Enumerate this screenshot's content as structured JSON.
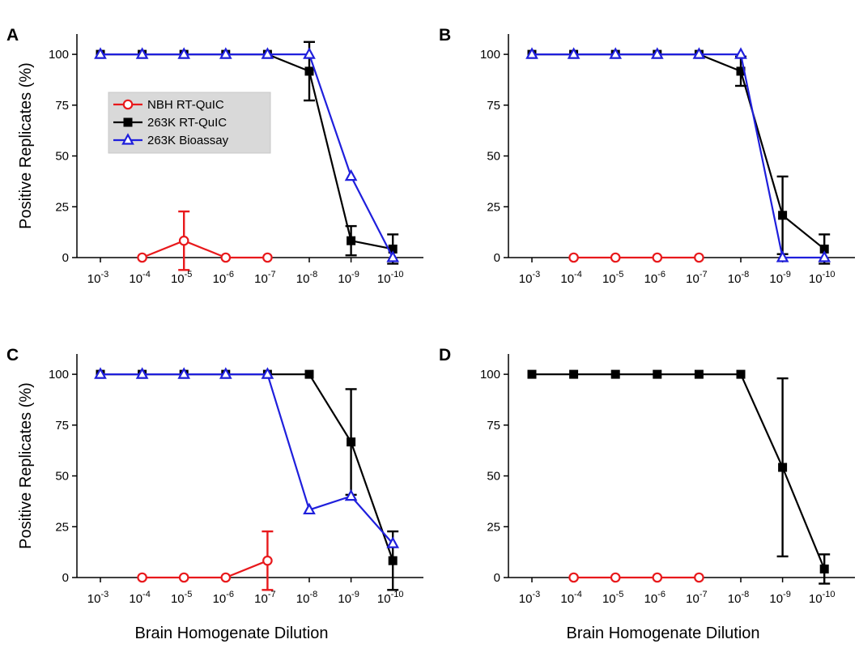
{
  "figure": {
    "ylabel": "Positive Replicates (%)",
    "xlabel": "Brain Homogenate Dilution"
  },
  "legend": {
    "entries": [
      {
        "name": "NBH RT-QuIC",
        "color": "#e8191c",
        "marker": "circle-open"
      },
      {
        "name": "263K RT-QuIC",
        "color": "#000000",
        "marker": "square-filled"
      },
      {
        "name": "263K Bioassay",
        "color": "#1f1fdc",
        "marker": "triangle-open"
      }
    ],
    "background": "#d9d9d9"
  },
  "chart_data": [
    {
      "panel": "A",
      "type": "line",
      "x_ticks": [
        "-3",
        "-4",
        "-5",
        "-6",
        "-7",
        "-8",
        "-9",
        "-10"
      ],
      "ylim": [
        0,
        110
      ],
      "y_ticks": [
        0,
        25,
        50,
        75,
        100
      ],
      "legend_placement": "top-left",
      "series": [
        {
          "name": "NBH RT-QuIC",
          "color": "#e8191c",
          "marker": "circle-open",
          "x": [
            "-4",
            "-5",
            "-6",
            "-7"
          ],
          "y": [
            0,
            8.3,
            0,
            0
          ],
          "err": [
            0,
            14.4,
            0,
            0
          ]
        },
        {
          "name": "263K RT-QuIC",
          "color": "#000000",
          "marker": "square-filled",
          "x": [
            "-3",
            "-4",
            "-5",
            "-6",
            "-7",
            "-8",
            "-9",
            "-10"
          ],
          "y": [
            100,
            100,
            100,
            100,
            100,
            91.7,
            8.3,
            4.2
          ],
          "err": [
            0,
            0,
            0,
            0,
            0,
            14.4,
            7.2,
            7.2
          ]
        },
        {
          "name": "263K Bioassay",
          "color": "#1f1fdc",
          "marker": "triangle-open",
          "x": [
            "-3",
            "-4",
            "-5",
            "-6",
            "-7",
            "-8",
            "-9",
            "-10"
          ],
          "y": [
            100,
            100,
            100,
            100,
            100,
            100,
            40,
            0
          ],
          "err": [
            0,
            0,
            0,
            0,
            0,
            0,
            0,
            0
          ]
        }
      ]
    },
    {
      "panel": "B",
      "type": "line",
      "x_ticks": [
        "-3",
        "-4",
        "-5",
        "-6",
        "-7",
        "-8",
        "-9",
        "-10"
      ],
      "ylim": [
        0,
        110
      ],
      "y_ticks": [
        0,
        25,
        50,
        75,
        100
      ],
      "series": [
        {
          "name": "NBH RT-QuIC",
          "color": "#e8191c",
          "marker": "circle-open",
          "x": [
            "-4",
            "-5",
            "-6",
            "-7"
          ],
          "y": [
            0,
            0,
            0,
            0
          ],
          "err": [
            0,
            0,
            0,
            0
          ]
        },
        {
          "name": "263K RT-QuIC",
          "color": "#000000",
          "marker": "square-filled",
          "x": [
            "-3",
            "-4",
            "-5",
            "-6",
            "-7",
            "-8",
            "-9",
            "-10"
          ],
          "y": [
            100,
            100,
            100,
            100,
            100,
            91.7,
            20.8,
            4.2
          ],
          "err": [
            0,
            0,
            0,
            0,
            0,
            7.2,
            19.1,
            7.2
          ]
        },
        {
          "name": "263K Bioassay",
          "color": "#1f1fdc",
          "marker": "triangle-open",
          "x": [
            "-3",
            "-4",
            "-5",
            "-6",
            "-7",
            "-8",
            "-9",
            "-10"
          ],
          "y": [
            100,
            100,
            100,
            100,
            100,
            100,
            0,
            0
          ],
          "err": [
            0,
            0,
            0,
            0,
            0,
            0,
            0,
            0
          ]
        }
      ]
    },
    {
      "panel": "C",
      "type": "line",
      "x_ticks": [
        "-3",
        "-4",
        "-5",
        "-6",
        "-7",
        "-8",
        "-9",
        "-10"
      ],
      "ylim": [
        0,
        110
      ],
      "y_ticks": [
        0,
        25,
        50,
        75,
        100
      ],
      "series": [
        {
          "name": "NBH RT-QuIC",
          "color": "#e8191c",
          "marker": "circle-open",
          "x": [
            "-4",
            "-5",
            "-6",
            "-7"
          ],
          "y": [
            0,
            0,
            0,
            8.3
          ],
          "err": [
            0,
            0,
            0,
            14.4
          ]
        },
        {
          "name": "263K RT-QuIC",
          "color": "#000000",
          "marker": "square-filled",
          "x": [
            "-3",
            "-4",
            "-5",
            "-6",
            "-7",
            "-8",
            "-9",
            "-10"
          ],
          "y": [
            100,
            100,
            100,
            100,
            100,
            100,
            66.7,
            8.3
          ],
          "err": [
            0,
            0,
            0,
            0,
            0,
            0,
            26,
            14.4
          ]
        },
        {
          "name": "263K Bioassay",
          "color": "#1f1fdc",
          "marker": "triangle-open",
          "x": [
            "-3",
            "-4",
            "-5",
            "-6",
            "-7",
            "-8",
            "-9",
            "-10"
          ],
          "y": [
            100,
            100,
            100,
            100,
            100,
            33.3,
            40,
            16.7
          ],
          "err": [
            0,
            0,
            0,
            0,
            0,
            0,
            0,
            0
          ]
        }
      ]
    },
    {
      "panel": "D",
      "type": "line",
      "x_ticks": [
        "-3",
        "-4",
        "-5",
        "-6",
        "-7",
        "-8",
        "-9",
        "-10"
      ],
      "ylim": [
        0,
        110
      ],
      "y_ticks": [
        0,
        25,
        50,
        75,
        100
      ],
      "series": [
        {
          "name": "NBH RT-QuIC",
          "color": "#e8191c",
          "marker": "circle-open",
          "x": [
            "-4",
            "-5",
            "-6",
            "-7"
          ],
          "y": [
            0,
            0,
            0,
            0
          ],
          "err": [
            0,
            0,
            0,
            0
          ]
        },
        {
          "name": "263K RT-QuIC",
          "color": "#000000",
          "marker": "square-filled",
          "x": [
            "-3",
            "-4",
            "-5",
            "-6",
            "-7",
            "-8",
            "-9",
            "-10"
          ],
          "y": [
            100,
            100,
            100,
            100,
            100,
            100,
            54.2,
            4.2
          ],
          "err": [
            0,
            0,
            0,
            0,
            0,
            0,
            43.8,
            7.2
          ]
        }
      ]
    }
  ]
}
